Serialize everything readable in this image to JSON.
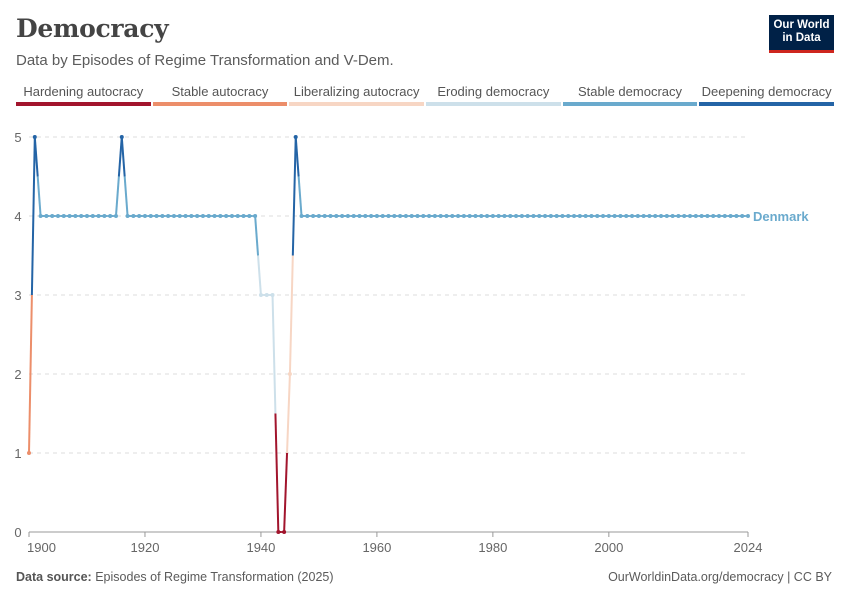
{
  "header": {
    "title": "Democracy",
    "subtitle": "Data by Episodes of Regime Transformation and V-Dem.",
    "logo_line1": "Our World",
    "logo_line2": "in Data"
  },
  "footer": {
    "source_label": "Data source:",
    "source_text": "Episodes of Regime Transformation (2025)",
    "url_text": "OurWorldinData.org/democracy | CC BY"
  },
  "colors": {
    "logo_bg": "#002147",
    "logo_accent": "#ce261e",
    "grid": "#dddddd",
    "axis": "#999999"
  },
  "chart_data": {
    "type": "line",
    "x_tick_labels": [
      "1900",
      "1920",
      "1940",
      "1960",
      "1980",
      "2000",
      "2024"
    ],
    "x_ticks": [
      1900,
      1920,
      1940,
      1960,
      1980,
      2000,
      2024
    ],
    "y_ticks": [
      0,
      1,
      2,
      3,
      4,
      5
    ],
    "xlim": [
      1900,
      2024
    ],
    "ylim": [
      0,
      5
    ],
    "grid": "horizontal dashed",
    "legend_position": "top",
    "categories": [
      {
        "label": "Hardening autocracy",
        "value": 0,
        "color": "#a2152d"
      },
      {
        "label": "Stable autocracy",
        "value": 1,
        "color": "#ec8e6a"
      },
      {
        "label": "Liberalizing autocracy",
        "value": 2,
        "color": "#f7d6c4"
      },
      {
        "label": "Eroding democracy",
        "value": 3,
        "color": "#cde0ea"
      },
      {
        "label": "Stable democracy",
        "value": 4,
        "color": "#6aaacd"
      },
      {
        "label": "Deepening democracy",
        "value": 5,
        "color": "#2464a6"
      }
    ],
    "series": [
      {
        "name": "Denmark",
        "points": [
          [
            1900,
            1
          ],
          [
            1901,
            5
          ],
          [
            1902,
            4
          ],
          [
            1903,
            4
          ],
          [
            1904,
            4
          ],
          [
            1905,
            4
          ],
          [
            1906,
            4
          ],
          [
            1907,
            4
          ],
          [
            1908,
            4
          ],
          [
            1909,
            4
          ],
          [
            1910,
            4
          ],
          [
            1911,
            4
          ],
          [
            1912,
            4
          ],
          [
            1913,
            4
          ],
          [
            1914,
            4
          ],
          [
            1915,
            4
          ],
          [
            1916,
            5
          ],
          [
            1917,
            4
          ],
          [
            1918,
            4
          ],
          [
            1919,
            4
          ],
          [
            1920,
            4
          ],
          [
            1921,
            4
          ],
          [
            1922,
            4
          ],
          [
            1923,
            4
          ],
          [
            1924,
            4
          ],
          [
            1925,
            4
          ],
          [
            1926,
            4
          ],
          [
            1927,
            4
          ],
          [
            1928,
            4
          ],
          [
            1929,
            4
          ],
          [
            1930,
            4
          ],
          [
            1931,
            4
          ],
          [
            1932,
            4
          ],
          [
            1933,
            4
          ],
          [
            1934,
            4
          ],
          [
            1935,
            4
          ],
          [
            1936,
            4
          ],
          [
            1937,
            4
          ],
          [
            1938,
            4
          ],
          [
            1939,
            4
          ],
          [
            1940,
            3
          ],
          [
            1941,
            3
          ],
          [
            1942,
            3
          ],
          [
            1943,
            0
          ],
          [
            1944,
            0
          ],
          [
            1945,
            2
          ],
          [
            1946,
            5
          ],
          [
            1947,
            4
          ],
          [
            1948,
            4
          ],
          [
            1949,
            4
          ],
          [
            1950,
            4
          ],
          [
            1951,
            4
          ],
          [
            1952,
            4
          ],
          [
            1953,
            4
          ],
          [
            1954,
            4
          ],
          [
            1955,
            4
          ],
          [
            1956,
            4
          ],
          [
            1957,
            4
          ],
          [
            1958,
            4
          ],
          [
            1959,
            4
          ],
          [
            1960,
            4
          ],
          [
            1961,
            4
          ],
          [
            1962,
            4
          ],
          [
            1963,
            4
          ],
          [
            1964,
            4
          ],
          [
            1965,
            4
          ],
          [
            1966,
            4
          ],
          [
            1967,
            4
          ],
          [
            1968,
            4
          ],
          [
            1969,
            4
          ],
          [
            1970,
            4
          ],
          [
            1971,
            4
          ],
          [
            1972,
            4
          ],
          [
            1973,
            4
          ],
          [
            1974,
            4
          ],
          [
            1975,
            4
          ],
          [
            1976,
            4
          ],
          [
            1977,
            4
          ],
          [
            1978,
            4
          ],
          [
            1979,
            4
          ],
          [
            1980,
            4
          ],
          [
            1981,
            4
          ],
          [
            1982,
            4
          ],
          [
            1983,
            4
          ],
          [
            1984,
            4
          ],
          [
            1985,
            4
          ],
          [
            1986,
            4
          ],
          [
            1987,
            4
          ],
          [
            1988,
            4
          ],
          [
            1989,
            4
          ],
          [
            1990,
            4
          ],
          [
            1991,
            4
          ],
          [
            1992,
            4
          ],
          [
            1993,
            4
          ],
          [
            1994,
            4
          ],
          [
            1995,
            4
          ],
          [
            1996,
            4
          ],
          [
            1997,
            4
          ],
          [
            1998,
            4
          ],
          [
            1999,
            4
          ],
          [
            2000,
            4
          ],
          [
            2001,
            4
          ],
          [
            2002,
            4
          ],
          [
            2003,
            4
          ],
          [
            2004,
            4
          ],
          [
            2005,
            4
          ],
          [
            2006,
            4
          ],
          [
            2007,
            4
          ],
          [
            2008,
            4
          ],
          [
            2009,
            4
          ],
          [
            2010,
            4
          ],
          [
            2011,
            4
          ],
          [
            2012,
            4
          ],
          [
            2013,
            4
          ],
          [
            2014,
            4
          ],
          [
            2015,
            4
          ],
          [
            2016,
            4
          ],
          [
            2017,
            4
          ],
          [
            2018,
            4
          ],
          [
            2019,
            4
          ],
          [
            2020,
            4
          ],
          [
            2021,
            4
          ],
          [
            2022,
            4
          ],
          [
            2023,
            4
          ],
          [
            2024,
            4
          ]
        ]
      }
    ]
  }
}
